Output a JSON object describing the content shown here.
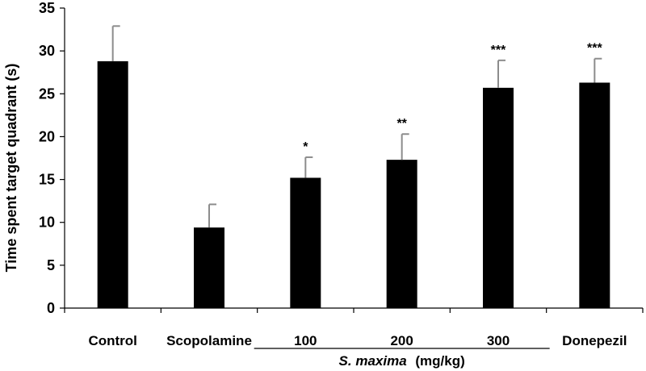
{
  "chart_data": {
    "type": "bar",
    "title": "",
    "xlabel": "",
    "ylabel": "Time spent target quadrant (s)",
    "ylim": [
      0,
      35
    ],
    "yticks": [
      "0",
      "5",
      "10",
      "15",
      "20",
      "25",
      "30",
      "35"
    ],
    "grid": false,
    "legend": "none",
    "bar_color": "#000000",
    "error_bar_color": "#8c8c8c",
    "categories": [
      "Control",
      "Scopolamine",
      "100",
      "200",
      "300",
      "Donepezil"
    ],
    "values": [
      28.8,
      9.4,
      15.2,
      17.3,
      25.7,
      26.3
    ],
    "errors": [
      4.1,
      2.7,
      2.4,
      3.0,
      3.2,
      2.8
    ],
    "significance": [
      "",
      "",
      "*",
      "**",
      "***",
      "***"
    ],
    "group": {
      "label_italic": "S. maxima",
      "label_unit": "(mg/kg)",
      "members": [
        "100",
        "200",
        "300"
      ]
    }
  }
}
